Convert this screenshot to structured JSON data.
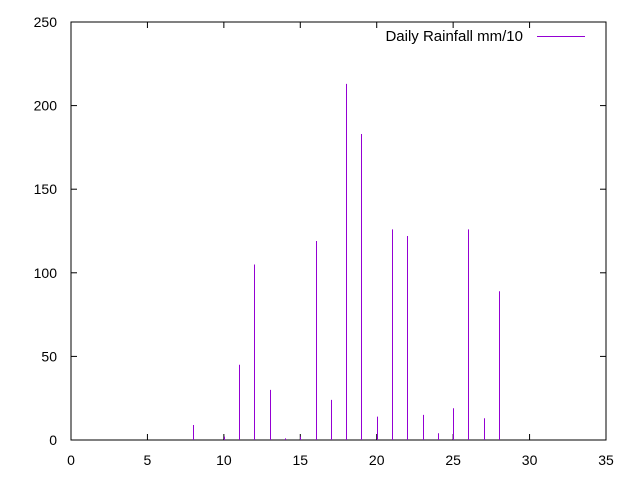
{
  "chart_data": {
    "type": "bar",
    "style": "impulses",
    "x": [
      8,
      10,
      11,
      12,
      13,
      14,
      15,
      16,
      17,
      18,
      19,
      20,
      21,
      22,
      23,
      24,
      25,
      26,
      27,
      28
    ],
    "series": [
      {
        "name": "Daily Rainfall mm/10",
        "values": [
          9,
          2,
          45,
          105,
          30,
          1,
          2,
          119,
          24,
          213,
          183,
          14,
          126,
          122,
          15,
          4,
          19,
          126,
          13,
          89
        ]
      }
    ],
    "xlim": [
      0,
      35
    ],
    "ylim": [
      0,
      250
    ],
    "xticks": [
      "0",
      "5",
      "10",
      "15",
      "20",
      "25",
      "30",
      "35"
    ],
    "yticks": [
      "0",
      "50",
      "100",
      "150",
      "200",
      "250"
    ],
    "grid": false,
    "legend_position": "top-right",
    "colors": {
      "series": "#9400d3",
      "axes": "#000000"
    }
  }
}
